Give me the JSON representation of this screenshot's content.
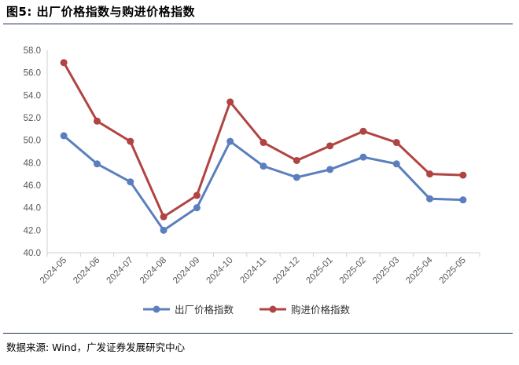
{
  "title": "图5:  出厂价格指数与购进价格指数",
  "source": "数据来源:   Wind，广发证券发展研究中心",
  "chart_data": {
    "type": "line",
    "categories": [
      "2024-05",
      "2024-06",
      "2024-07",
      "2024-08",
      "2024-09",
      "2024-10",
      "2024-11",
      "2024-12",
      "2025-01",
      "2025-02",
      "2025-03",
      "2025-04",
      "2025-05"
    ],
    "series": [
      {
        "name": "出厂价格指数",
        "color": "#5b7fbe",
        "values": [
          50.4,
          47.9,
          46.3,
          42.0,
          44.0,
          49.9,
          47.7,
          46.7,
          47.4,
          48.5,
          47.9,
          44.8,
          44.7
        ]
      },
      {
        "name": "购进价格指数",
        "color": "#b04442",
        "values": [
          56.9,
          51.7,
          49.9,
          43.2,
          45.1,
          53.4,
          49.8,
          48.2,
          49.5,
          50.8,
          49.8,
          47.0,
          46.9
        ]
      }
    ],
    "yticks": [
      "40.0",
      "42.0",
      "44.0",
      "46.0",
      "48.0",
      "50.0",
      "52.0",
      "54.0",
      "56.0",
      "58.0"
    ],
    "ylim": [
      40,
      58
    ],
    "legend": "bottom-center",
    "grid": false
  }
}
